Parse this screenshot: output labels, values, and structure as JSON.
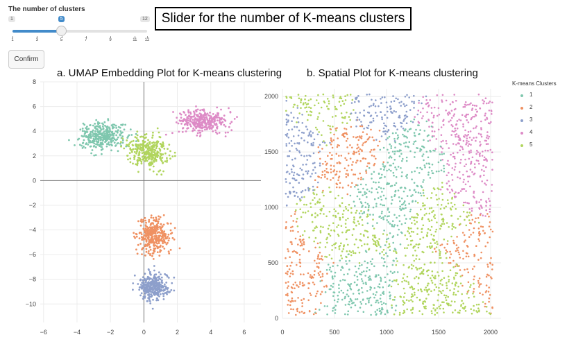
{
  "slider": {
    "title": "The number of clusters",
    "min_label": "1",
    "max_label": "12",
    "value": 5,
    "value_label": "5",
    "min": 1,
    "max": 12,
    "ticks": [
      "1",
      "3",
      "5",
      "7",
      "9",
      "11",
      "12"
    ]
  },
  "confirm_button": "Confirm",
  "callout": "Slider for the number of K-means clusters",
  "titles": {
    "umap": "a. UMAP Embedding Plot for K-means clustering",
    "spatial": "b. Spatial Plot for K-means clustering"
  },
  "legend": {
    "title": "K-means Clusters",
    "items": [
      {
        "label": "1",
        "color": "#7fc7ae"
      },
      {
        "label": "2",
        "color": "#ef9162"
      },
      {
        "label": "3",
        "color": "#8d9fcb"
      },
      {
        "label": "4",
        "color": "#dd8bc6"
      },
      {
        "label": "5",
        "color": "#b1d55e"
      }
    ]
  },
  "chart_data": [
    {
      "type": "scatter",
      "title": "a. UMAP Embedding Plot for K-means clustering",
      "xlim": [
        -6.2,
        7.0
      ],
      "ylim": [
        -11.5,
        8.0
      ],
      "x_ticks": [
        "−6",
        "−4",
        "−2",
        "0",
        "2",
        "4",
        "6"
      ],
      "y_ticks": [
        "8",
        "6",
        "4",
        "2",
        "0",
        "−2",
        "−4",
        "−6",
        "−8",
        "−10"
      ],
      "grid": true,
      "zero_lines": true,
      "clusters": [
        {
          "name": "1",
          "color": "#7fc7ae",
          "center": [
            -2.5,
            3.6
          ],
          "spread": [
            1.2,
            1.0
          ]
        },
        {
          "name": "2",
          "color": "#ef9162",
          "center": [
            0.6,
            -4.5
          ],
          "spread": [
            0.9,
            1.3
          ]
        },
        {
          "name": "3",
          "color": "#8d9fcb",
          "center": [
            0.6,
            -8.6
          ],
          "spread": [
            0.8,
            1.0
          ]
        },
        {
          "name": "4",
          "color": "#dd8bc6",
          "center": [
            3.5,
            4.8
          ],
          "spread": [
            1.4,
            0.8
          ]
        },
        {
          "name": "5",
          "color": "#b1d55e",
          "center": [
            0.2,
            2.4
          ],
          "spread": [
            1.2,
            1.1
          ]
        }
      ],
      "point_count_per_cluster": 340
    },
    {
      "type": "scatter",
      "title": "b. Spatial Plot for K-means clustering",
      "xlim": [
        0,
        2100
      ],
      "ylim": [
        0,
        2070
      ],
      "x_ticks": [
        "0",
        "500",
        "1000",
        "1500",
        "2000"
      ],
      "y_ticks": [
        "0",
        "500",
        "1000",
        "1500",
        "2000"
      ],
      "grid": true,
      "regions": [
        {
          "cluster": "3",
          "color": "#8d9fcb",
          "center": [
            150,
            1600
          ]
        },
        {
          "cluster": "3",
          "color": "#8d9fcb",
          "center": [
            900,
            1930
          ]
        },
        {
          "cluster": "2",
          "color": "#ef9162",
          "center": [
            130,
            400
          ]
        },
        {
          "cluster": "2",
          "color": "#ef9162",
          "center": [
            1820,
            650
          ]
        },
        {
          "cluster": "2",
          "color": "#ef9162",
          "center": [
            650,
            1480
          ]
        },
        {
          "cluster": "4",
          "color": "#dd8bc6",
          "center": [
            1700,
            1750
          ]
        },
        {
          "cluster": "4",
          "color": "#dd8bc6",
          "center": [
            1850,
            1200
          ]
        },
        {
          "cluster": "1",
          "color": "#7fc7ae",
          "center": [
            950,
            1100
          ]
        },
        {
          "cluster": "1",
          "color": "#7fc7ae",
          "center": [
            700,
            300
          ]
        },
        {
          "cluster": "1",
          "color": "#7fc7ae",
          "center": [
            1250,
            1400
          ]
        },
        {
          "cluster": "5",
          "color": "#b1d55e",
          "center": [
            600,
            800
          ]
        },
        {
          "cluster": "5",
          "color": "#b1d55e",
          "center": [
            1550,
            900
          ]
        },
        {
          "cluster": "5",
          "color": "#b1d55e",
          "center": [
            1450,
            300
          ]
        },
        {
          "cluster": "5",
          "color": "#b1d55e",
          "center": [
            400,
            1900
          ]
        }
      ],
      "point_count": 2400
    }
  ]
}
